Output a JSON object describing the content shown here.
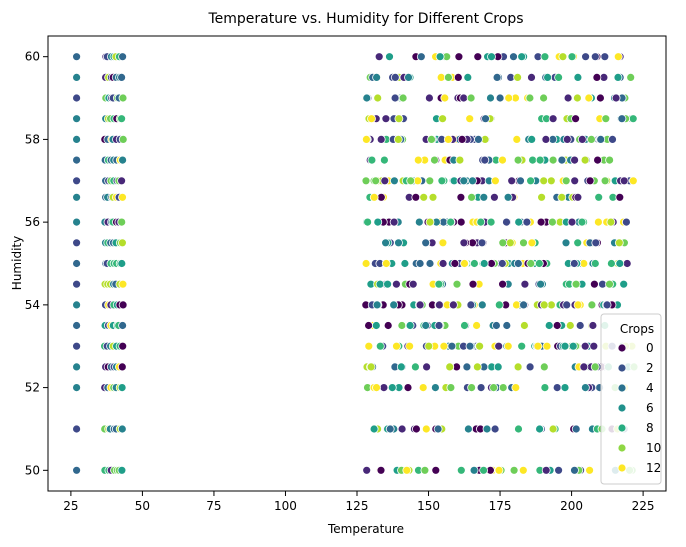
{
  "chart_data": {
    "type": "scatter",
    "title": "Temperature vs. Humidity for Different Crops",
    "xlabel": "Temperature",
    "ylabel": "Humidity",
    "xlim": [
      17,
      233
    ],
    "ylim": [
      49.5,
      60.5
    ],
    "xticks": [
      25,
      50,
      75,
      100,
      125,
      150,
      175,
      200,
      225
    ],
    "yticks": [
      50,
      52,
      54,
      56,
      58,
      60
    ],
    "grid": false,
    "legend": {
      "title": "Crops",
      "placement": "lower-right",
      "entries": [
        {
          "label": "0",
          "color": "#440154"
        },
        {
          "label": "2",
          "color": "#3b528b"
        },
        {
          "label": "4",
          "color": "#2c728e"
        },
        {
          "label": "6",
          "color": "#21918c"
        },
        {
          "label": "8",
          "color": "#27ad81"
        },
        {
          "label": "10",
          "color": "#8fd744"
        },
        {
          "label": "12",
          "color": "#fde725"
        }
      ]
    },
    "palette": [
      "#440154",
      "#482878",
      "#3e4989",
      "#31688e",
      "#26828e",
      "#1f9e89",
      "#35b779",
      "#6ece58",
      "#b5de2b",
      "#fde725"
    ],
    "humidity_levels": [
      50,
      51,
      52,
      52.5,
      53,
      53.5,
      54,
      54.5,
      55,
      55.5,
      56,
      56.6,
      57,
      57.5,
      58,
      58.5,
      59,
      59.5,
      60
    ],
    "temperature_groups": {
      "column_27": {
        "temperature": 27
      },
      "band_37_43": {
        "temperature_min": 37,
        "temperature_max": 43
      },
      "band_128_222": {
        "temperature_min": 128,
        "temperature_max": 222
      }
    }
  }
}
